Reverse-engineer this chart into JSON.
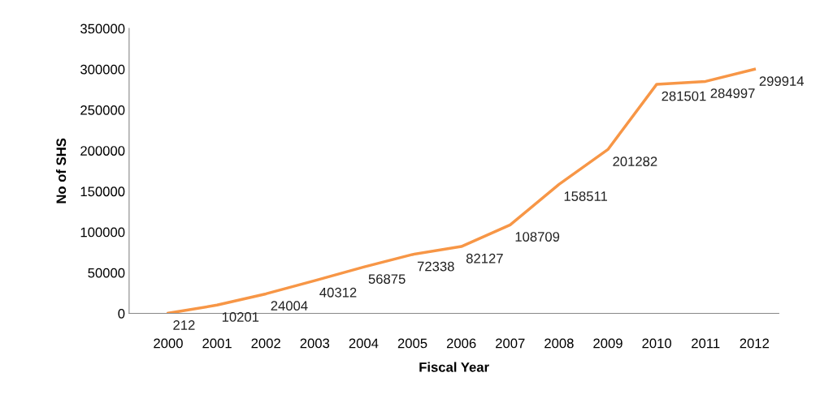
{
  "chart_data": {
    "type": "line",
    "xlabel": "Fiscal Year",
    "ylabel": "No of SHS",
    "categories": [
      "2000",
      "2001",
      "2002",
      "2003",
      "2004",
      "2005",
      "2006",
      "2007",
      "2008",
      "2009",
      "2010",
      "2011",
      "2012"
    ],
    "series": [
      {
        "color": "#f79646",
        "values": [
          212,
          10201,
          24004,
          40312,
          56875,
          72338,
          82127,
          108709,
          158511,
          201282,
          281501,
          284997,
          299914
        ]
      }
    ],
    "ylim": [
      0,
      350000
    ],
    "yticks": [
      0,
      50000,
      100000,
      150000,
      200000,
      250000,
      300000,
      350000
    ],
    "data_labels": true,
    "grid": false,
    "marker": "none",
    "line_style": "solid",
    "legend": false
  }
}
